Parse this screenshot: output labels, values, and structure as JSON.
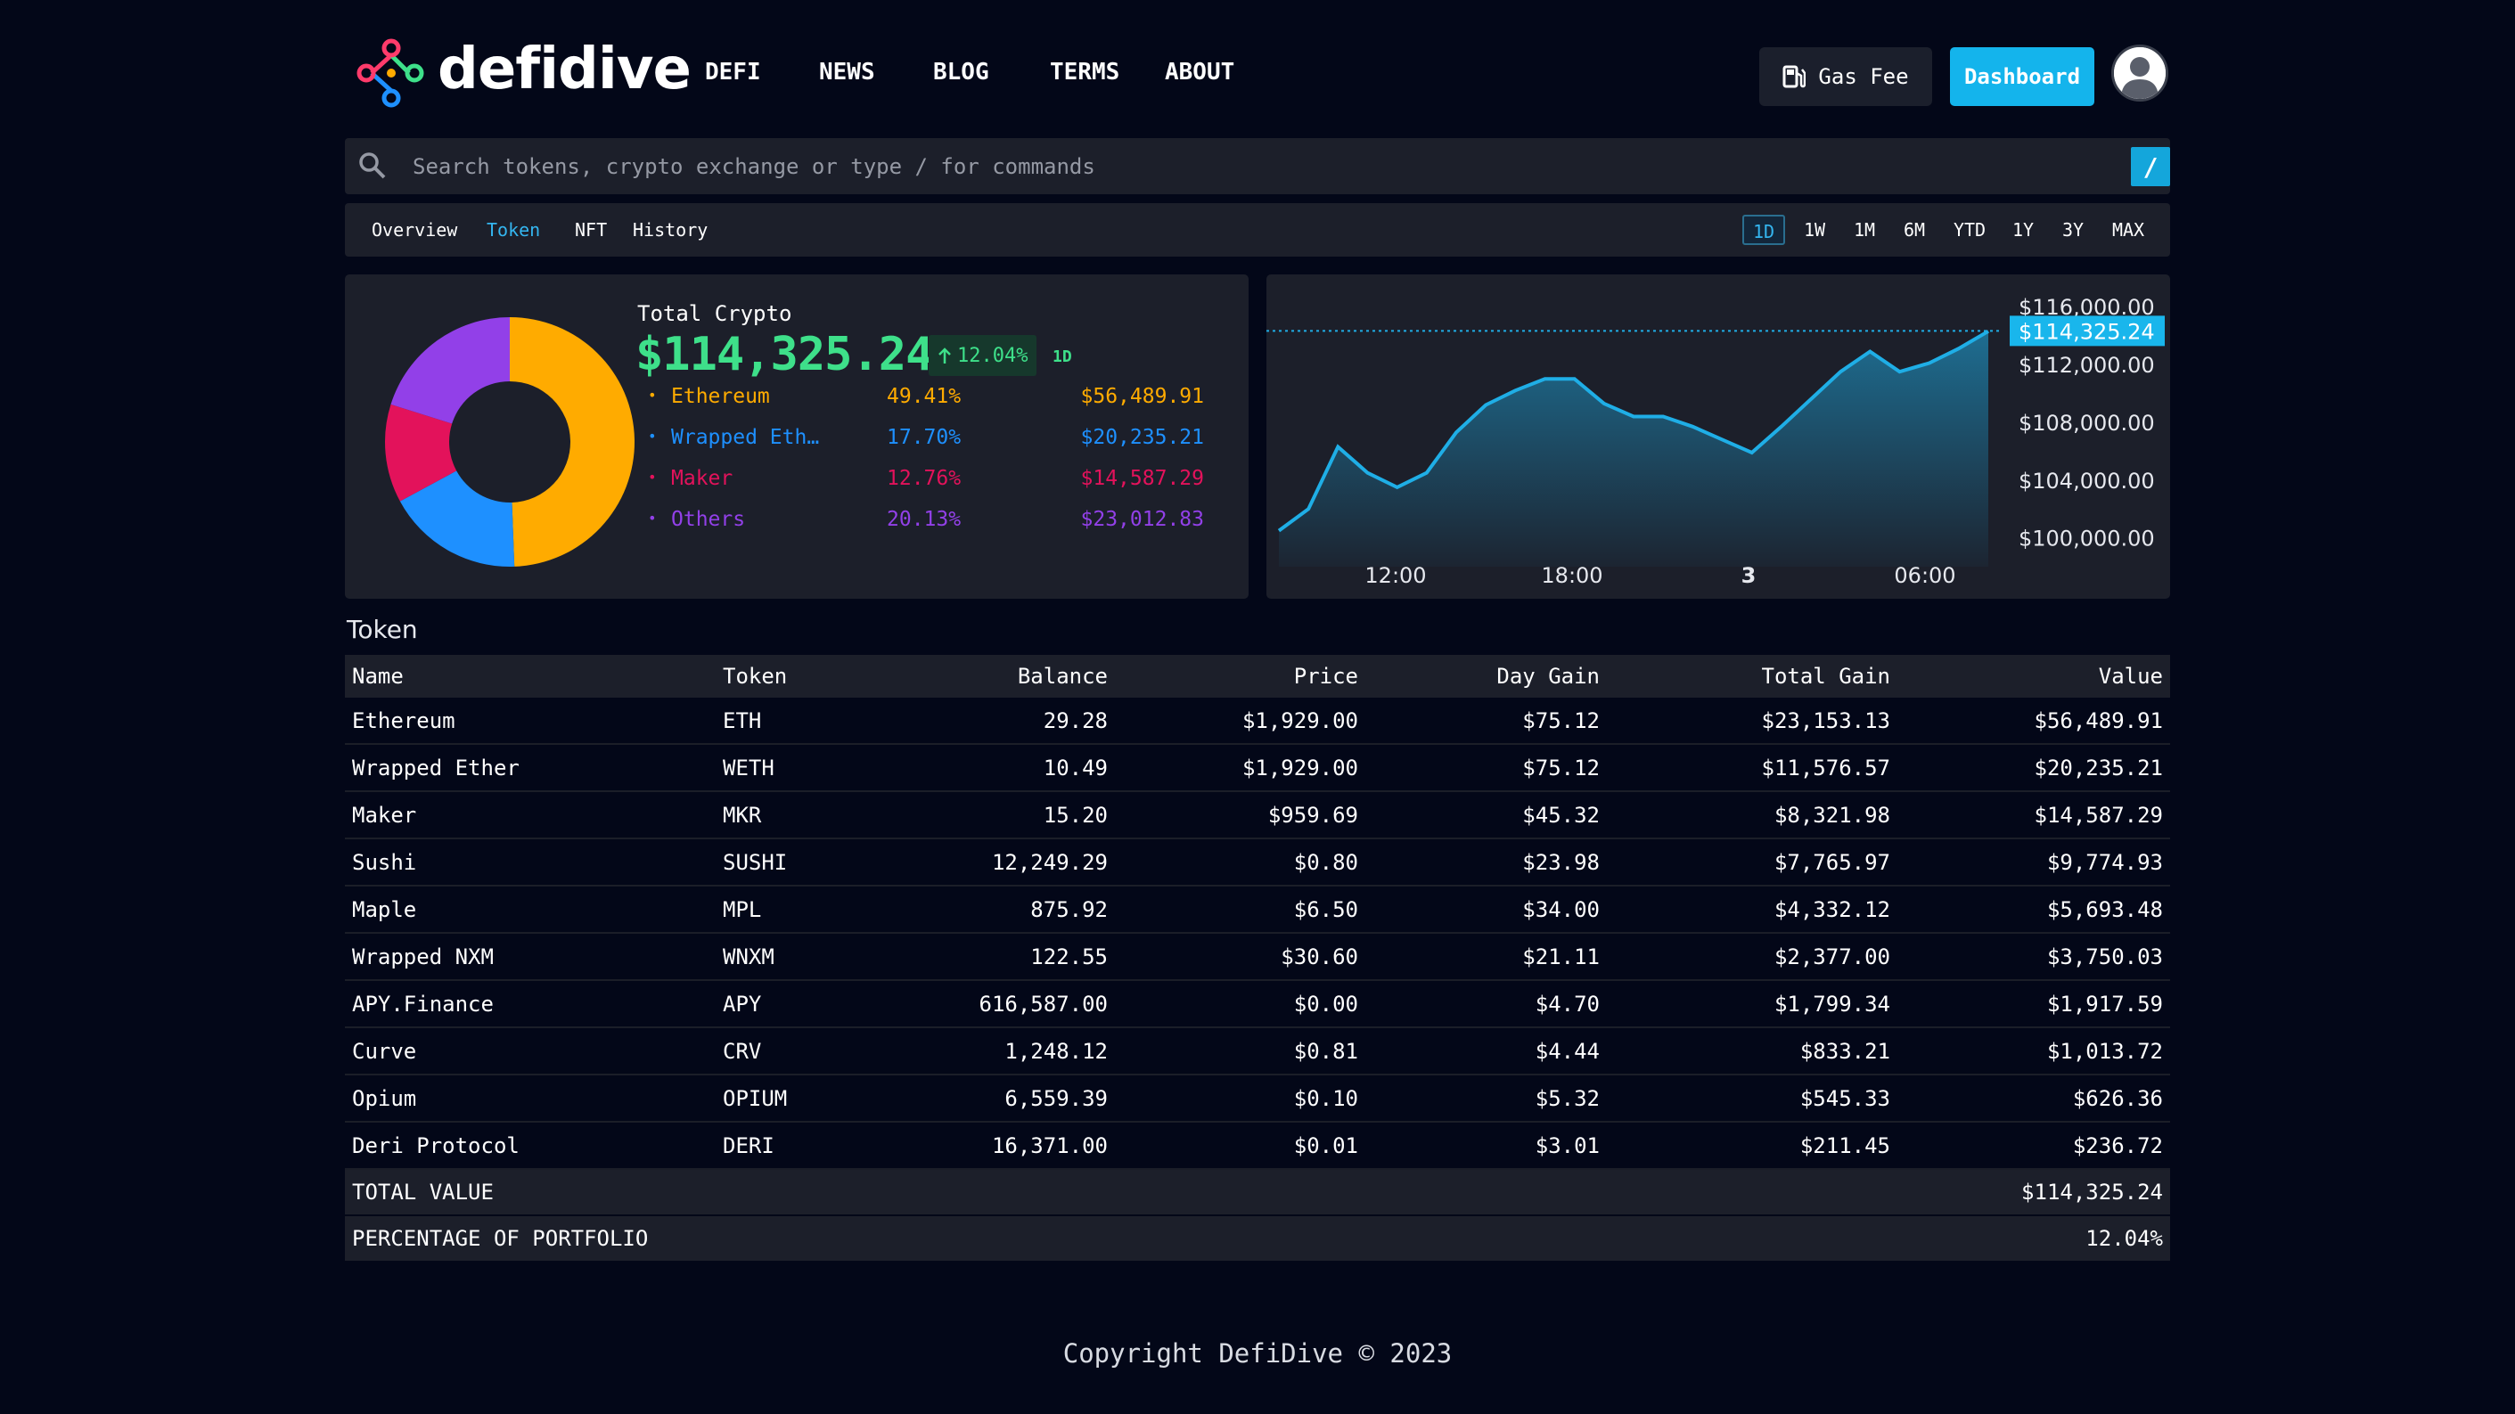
{
  "brand": {
    "name": "defidive"
  },
  "nav": [
    {
      "label": "DEFI"
    },
    {
      "label": "NEWS"
    },
    {
      "label": "BLOG"
    },
    {
      "label": "TERMS"
    },
    {
      "label": "ABOUT"
    }
  ],
  "header": {
    "gas_fee_label": "Gas Fee",
    "dashboard_label": "Dashboard"
  },
  "search": {
    "placeholder": "Search tokens, crypto exchange or type / for commands",
    "shortcut": "/"
  },
  "tabs": [
    {
      "label": "Overview",
      "active": false
    },
    {
      "label": "Token",
      "active": true
    },
    {
      "label": "NFT",
      "active": false
    },
    {
      "label": "History",
      "active": false
    }
  ],
  "ranges": [
    {
      "label": "1D",
      "active": true
    },
    {
      "label": "1W",
      "active": false
    },
    {
      "label": "1M",
      "active": false
    },
    {
      "label": "6M",
      "active": false
    },
    {
      "label": "YTD",
      "active": false
    },
    {
      "label": "1Y",
      "active": false
    },
    {
      "label": "3Y",
      "active": false
    },
    {
      "label": "MAX",
      "active": false
    }
  ],
  "summary": {
    "label": "Total Crypto",
    "value": "$114,325.24",
    "change": "12.04%",
    "period": "1D"
  },
  "allocation": [
    {
      "name": "Ethereum",
      "percent": "49.41%",
      "value": "$56,489.91",
      "share": 49.41,
      "color": "#ffab00"
    },
    {
      "name": "Wrapped Eth…",
      "percent": "17.70%",
      "value": "$20,235.21",
      "share": 17.7,
      "color": "#1e90ff"
    },
    {
      "name": "Maker",
      "percent": "12.76%",
      "value": "$14,587.29",
      "share": 12.76,
      "color": "#e3125b"
    },
    {
      "name": "Others",
      "percent": "20.13%",
      "value": "$23,012.83",
      "share": 20.13,
      "color": "#9240e8"
    }
  ],
  "chart_data": {
    "type": "area",
    "x_labels": [
      "12:00",
      "18:00",
      "3",
      "06:00"
    ],
    "y_ticks": [
      "$116,000.00",
      "$112,000.00",
      "$108,000.00",
      "$104,000.00",
      "$100,000.00"
    ],
    "ylim": [
      98500,
      117000
    ],
    "current_label": "$114,325.24",
    "current_value": 114325.24,
    "values": [
      100500,
      102000,
      106300,
      104500,
      103500,
      104500,
      107300,
      109200,
      110200,
      111000,
      111000,
      109300,
      108400,
      108400,
      107700,
      106800,
      105900,
      107700,
      109600,
      111500,
      112900,
      111500,
      112100,
      113100,
      114300
    ],
    "color": "#1faee6"
  },
  "table": {
    "title": "Token",
    "columns": [
      "Name",
      "Token",
      "Balance",
      "Price",
      "Day Gain",
      "Total Gain",
      "Value"
    ],
    "rows": [
      [
        "Ethereum",
        "ETH",
        "29.28",
        "$1,929.00",
        "$75.12",
        "$23,153.13",
        "$56,489.91"
      ],
      [
        "Wrapped Ether",
        "WETH",
        "10.49",
        "$1,929.00",
        "$75.12",
        "$11,576.57",
        "$20,235.21"
      ],
      [
        "Maker",
        "MKR",
        "15.20",
        "$959.69",
        "$45.32",
        "$8,321.98",
        "$14,587.29"
      ],
      [
        "Sushi",
        "SUSHI",
        "12,249.29",
        "$0.80",
        "$23.98",
        "$7,765.97",
        "$9,774.93"
      ],
      [
        "Maple",
        "MPL",
        "875.92",
        "$6.50",
        "$34.00",
        "$4,332.12",
        "$5,693.48"
      ],
      [
        "Wrapped NXM",
        "WNXM",
        "122.55",
        "$30.60",
        "$21.11",
        "$2,377.00",
        "$3,750.03"
      ],
      [
        "APY.Finance",
        "APY",
        "616,587.00",
        "$0.00",
        "$4.70",
        "$1,799.34",
        "$1,917.59"
      ],
      [
        "Curve",
        "CRV",
        "1,248.12",
        "$0.81",
        "$4.44",
        "$833.21",
        "$1,013.72"
      ],
      [
        "Opium",
        "OPIUM",
        "6,559.39",
        "$0.10",
        "$5.32",
        "$545.33",
        "$626.36"
      ],
      [
        "Deri Protocol",
        "DERI",
        "16,371.00",
        "$0.01",
        "$3.01",
        "$211.45",
        "$236.72"
      ]
    ],
    "total_label": "TOTAL VALUE",
    "total_value": "$114,325.24",
    "percentage_label": "PERCENTAGE OF PORTFOLIO",
    "percentage_value": "12.04%"
  },
  "footer": {
    "text": "Copyright DefiDive © 2023"
  }
}
